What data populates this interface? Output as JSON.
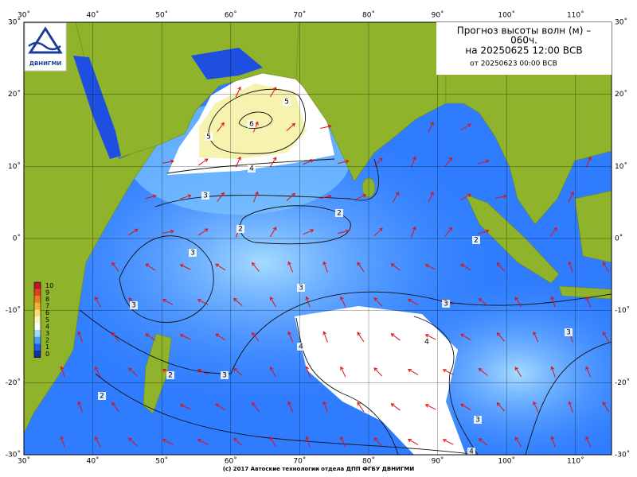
{
  "map": {
    "title": [
      "Прогноз высоты волн (м) –",
      "060ч.",
      "на 20250625 12:00 ВСВ"
    ],
    "subtitle": "от 20250623 00:00 ВСВ",
    "logo": "ДВНИГМИ",
    "footer": "(c) 2017 Автоские технологии отдела ДПП ФГБУ ДВНИГМИ",
    "lon_ticks": [
      {
        "value": 30,
        "label": "30˚"
      },
      {
        "value": 40,
        "label": "40˚"
      },
      {
        "value": 50,
        "label": "50˚"
      },
      {
        "value": 60,
        "label": "60˚"
      },
      {
        "value": 70,
        "label": "70˚"
      },
      {
        "value": 80,
        "label": "80˚"
      },
      {
        "value": 90,
        "label": "90˚"
      },
      {
        "value": 100,
        "label": "100˚"
      },
      {
        "value": 110,
        "label": "110˚"
      }
    ],
    "lat_ticks": [
      {
        "value": 30,
        "label": "30˚"
      },
      {
        "value": 20,
        "label": "20˚"
      },
      {
        "value": 10,
        "label": "10˚"
      },
      {
        "value": 0,
        "label": "0˚"
      },
      {
        "value": -10,
        "label": "-10˚"
      },
      {
        "value": -20,
        "label": "-20˚"
      },
      {
        "value": -30,
        "label": "-30˚"
      }
    ],
    "colorbar": [
      10,
      9,
      8,
      7,
      6,
      5,
      4,
      3,
      2,
      1,
      0
    ],
    "contour_labels": [
      "6",
      "5",
      "5",
      "4",
      "3",
      "2",
      "2",
      "2",
      "3",
      "3",
      "3",
      "4",
      "4",
      "3",
      "2",
      "3",
      "3",
      "3",
      "4",
      "2"
    ]
  }
}
